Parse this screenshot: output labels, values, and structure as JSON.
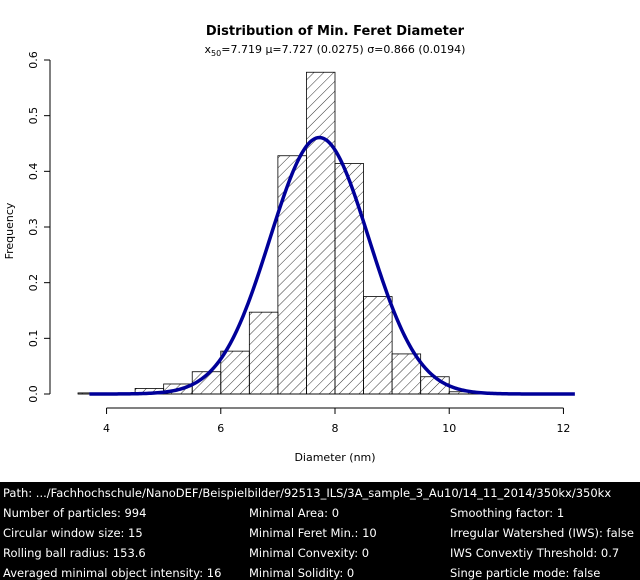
{
  "chart_data": {
    "type": "bar",
    "title": "Distribution of Min. Feret Diameter",
    "subtitle": {
      "x50_label": "x",
      "x50_sub": "50",
      "rest": "=7.719 μ=7.727 (0.0275) σ=0.866 (0.0194)"
    },
    "xlabel": "Diameter (nm)",
    "ylabel": "Frequency",
    "xlim": [
      3.5,
      12.5
    ],
    "ylim": [
      0,
      0.6
    ],
    "x_ticks": [
      "4",
      "6",
      "8",
      "10",
      "12"
    ],
    "y_ticks": [
      "0.0",
      "0.1",
      "0.2",
      "0.3",
      "0.4",
      "0.5",
      "0.6"
    ],
    "bins": [
      {
        "start": 3.5,
        "end": 4.0,
        "value": 0.002
      },
      {
        "start": 4.0,
        "end": 4.5,
        "value": 0.001
      },
      {
        "start": 4.5,
        "end": 5.0,
        "value": 0.01
      },
      {
        "start": 5.0,
        "end": 5.5,
        "value": 0.018
      },
      {
        "start": 5.5,
        "end": 6.0,
        "value": 0.04
      },
      {
        "start": 6.0,
        "end": 6.5,
        "value": 0.077
      },
      {
        "start": 6.5,
        "end": 7.0,
        "value": 0.147
      },
      {
        "start": 7.0,
        "end": 7.5,
        "value": 0.428
      },
      {
        "start": 7.5,
        "end": 8.0,
        "value": 0.578
      },
      {
        "start": 8.0,
        "end": 8.5,
        "value": 0.414
      },
      {
        "start": 8.5,
        "end": 9.0,
        "value": 0.175
      },
      {
        "start": 9.0,
        "end": 9.5,
        "value": 0.072
      },
      {
        "start": 9.5,
        "end": 10.0,
        "value": 0.031
      },
      {
        "start": 10.0,
        "end": 10.5,
        "value": 0.004
      },
      {
        "start": 10.5,
        "end": 11.0,
        "value": 0.002
      }
    ],
    "fit_curve": {
      "type": "normal",
      "mean": 7.727,
      "sd": 0.866,
      "x_range": [
        3.7,
        12.2
      ],
      "color": "#000099"
    },
    "bar_style": "hatched"
  },
  "info_panel": {
    "path": "Path: .../Fachhochschule/NanoDEF/Beispielbilder/92513_ILS/3A_sample_3_Au10/14_11_2014/350kx/350kx",
    "rows": [
      [
        "Number of particles: 994",
        "Minimal Area: 0",
        "Smoothing factor: 1"
      ],
      [
        "Circular window size: 15",
        "Minimal Feret Min.: 10",
        "Irregular Watershed (IWS): false"
      ],
      [
        "Rolling ball radius: 153.6",
        "Minimal Convexity: 0",
        "IWS Convextiy Threshold: 0.7"
      ],
      [
        "Averaged minimal object intensity: 16",
        "Minimal Solidity: 0",
        "Singe particle mode: false"
      ]
    ]
  }
}
